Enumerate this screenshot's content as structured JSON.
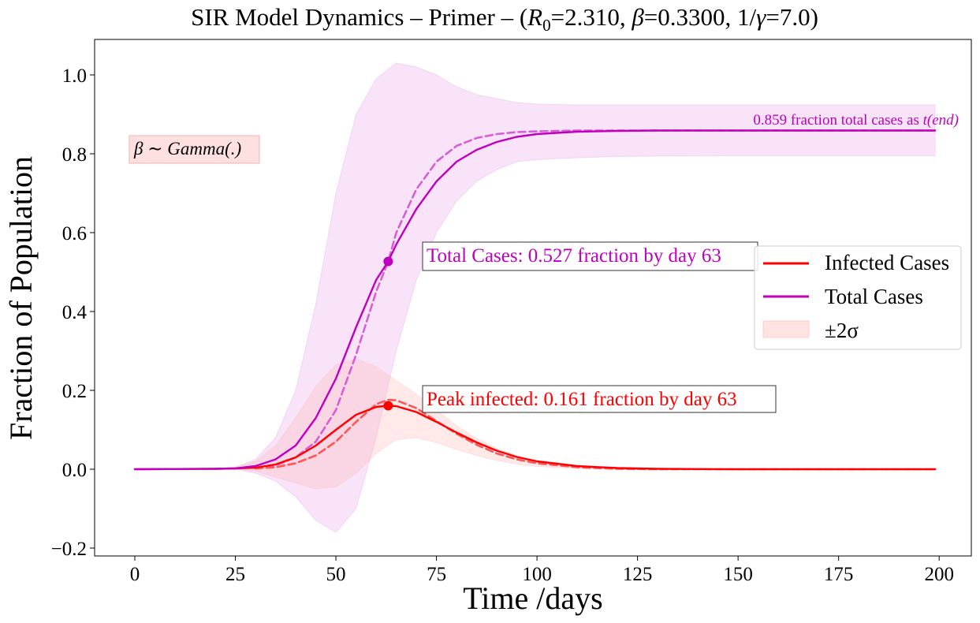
{
  "chart_data": {
    "type": "line",
    "title": "SIR Model Dynamics – Primer – (R0=2.310, β=0.3300, 1/γ=7.0)",
    "title_parts": {
      "prefix": "SIR Model Dynamics – Primer – (",
      "r0_symbol": "R",
      "r0_sub": "0",
      "r0_value": "=2.310, ",
      "beta_symbol": "β",
      "beta_value": "=0.3300, ",
      "gamma_prefix": "1/",
      "gamma_symbol": "γ",
      "gamma_value": "=7.0)"
    },
    "xlabel": "Time /days",
    "ylabel": "Fraction of Population",
    "xlim": [
      -10,
      208
    ],
    "ylim": [
      -0.22,
      1.09
    ],
    "xticks": [
      0,
      25,
      50,
      75,
      100,
      125,
      150,
      175,
      200
    ],
    "yticks": [
      -0.2,
      0.0,
      0.2,
      0.4,
      0.6,
      0.8,
      1.0
    ],
    "xtick_labels": [
      "0",
      "25",
      "50",
      "75",
      "100",
      "125",
      "150",
      "175",
      "200"
    ],
    "ytick_labels": [
      "−0.2",
      "0.0",
      "0.2",
      "0.4",
      "0.6",
      "0.8",
      "1.0"
    ],
    "grid": false,
    "legend_position": "center-right",
    "legend": [
      {
        "label": "Infected Cases",
        "kind": "line",
        "color": "#ff0000"
      },
      {
        "label": "Total Cases",
        "kind": "line",
        "color": "#bf00bf"
      },
      {
        "label": "±2σ",
        "kind": "band",
        "color": "#ffb6b6"
      }
    ],
    "series": [
      {
        "name": "Infected Cases",
        "color": "#ff0000",
        "style": "solid",
        "x": [
          0,
          20,
          25,
          30,
          35,
          40,
          45,
          50,
          55,
          60,
          63,
          65,
          70,
          75,
          80,
          85,
          90,
          95,
          100,
          110,
          120,
          130,
          150,
          175,
          199
        ],
        "y": [
          0.0,
          0.001,
          0.002,
          0.004,
          0.012,
          0.03,
          0.06,
          0.1,
          0.138,
          0.158,
          0.161,
          0.16,
          0.145,
          0.12,
          0.093,
          0.068,
          0.047,
          0.031,
          0.02,
          0.008,
          0.003,
          0.001,
          0.0,
          0.0,
          0.0
        ]
      },
      {
        "name": "Total Cases",
        "color": "#bf00bf",
        "style": "solid",
        "x": [
          0,
          20,
          25,
          30,
          35,
          40,
          45,
          50,
          55,
          60,
          63,
          65,
          70,
          75,
          80,
          85,
          90,
          95,
          100,
          110,
          120,
          130,
          150,
          175,
          199
        ],
        "y": [
          0.0,
          0.001,
          0.002,
          0.008,
          0.025,
          0.06,
          0.13,
          0.23,
          0.36,
          0.48,
          0.527,
          0.57,
          0.66,
          0.73,
          0.78,
          0.81,
          0.83,
          0.843,
          0.85,
          0.856,
          0.858,
          0.859,
          0.859,
          0.859,
          0.859
        ]
      },
      {
        "name": "Infected (dashed)",
        "color": "#ff5555",
        "style": "dashed",
        "x": [
          30,
          35,
          40,
          45,
          50,
          55,
          60,
          63,
          65,
          70,
          75,
          80,
          85,
          90,
          95,
          100,
          110,
          120,
          130,
          150,
          175,
          199
        ],
        "y": [
          0.002,
          0.005,
          0.015,
          0.035,
          0.07,
          0.12,
          0.165,
          0.176,
          0.175,
          0.155,
          0.122,
          0.09,
          0.062,
          0.04,
          0.025,
          0.015,
          0.005,
          0.001,
          0.0,
          0.0,
          0.0,
          0.0
        ]
      },
      {
        "name": "Total (dashed)",
        "color": "#d65fd6",
        "style": "dashed",
        "x": [
          30,
          35,
          40,
          45,
          50,
          55,
          60,
          63,
          65,
          70,
          75,
          80,
          85,
          90,
          95,
          100,
          110,
          120,
          130,
          150,
          175,
          199
        ],
        "y": [
          0.004,
          0.01,
          0.03,
          0.07,
          0.15,
          0.29,
          0.45,
          0.527,
          0.6,
          0.71,
          0.78,
          0.82,
          0.84,
          0.85,
          0.855,
          0.857,
          0.859,
          0.859,
          0.859,
          0.859,
          0.859,
          0.859
        ]
      }
    ],
    "bands": [
      {
        "name": "Total Cases ±2σ",
        "color": "#e7a3e7",
        "x": [
          0,
          20,
          25,
          30,
          35,
          40,
          45,
          50,
          55,
          60,
          65,
          70,
          75,
          80,
          85,
          90,
          95,
          100,
          110,
          120,
          130,
          150,
          175,
          199
        ],
        "lower": [
          0.0,
          0.0,
          0.0,
          -0.01,
          -0.03,
          -0.07,
          -0.13,
          -0.16,
          -0.1,
          0.08,
          0.3,
          0.48,
          0.6,
          0.68,
          0.73,
          0.76,
          0.78,
          0.785,
          0.79,
          0.793,
          0.794,
          0.795,
          0.795,
          0.795
        ],
        "upper": [
          0.0,
          0.002,
          0.005,
          0.025,
          0.08,
          0.2,
          0.42,
          0.7,
          0.9,
          0.99,
          1.03,
          1.02,
          1.0,
          0.97,
          0.95,
          0.94,
          0.93,
          0.926,
          0.924,
          0.924,
          0.924,
          0.924,
          0.924,
          0.924
        ]
      },
      {
        "name": "Infected ±2σ",
        "color": "#ffb6b6",
        "x": [
          0,
          20,
          25,
          30,
          35,
          40,
          45,
          50,
          55,
          60,
          65,
          70,
          75,
          80,
          85,
          90,
          95,
          100,
          110,
          120,
          130,
          150,
          175,
          199
        ],
        "lower": [
          0.0,
          0.0,
          0.0,
          -0.005,
          -0.02,
          -0.035,
          -0.05,
          -0.045,
          -0.01,
          0.04,
          0.075,
          0.08,
          0.068,
          0.05,
          0.035,
          0.022,
          0.013,
          0.007,
          0.002,
          0.0,
          0.0,
          0.0,
          0.0,
          0.0
        ],
        "upper": [
          0.0,
          0.002,
          0.005,
          0.02,
          0.06,
          0.13,
          0.21,
          0.265,
          0.28,
          0.26,
          0.225,
          0.19,
          0.15,
          0.11,
          0.078,
          0.053,
          0.034,
          0.022,
          0.008,
          0.003,
          0.001,
          0.0,
          0.0,
          0.0
        ]
      }
    ],
    "markers": [
      {
        "x": 63,
        "y": 0.527,
        "color": "#bf00bf"
      },
      {
        "x": 63,
        "y": 0.161,
        "color": "#ff0000"
      }
    ],
    "annotations": {
      "total_cases": "Total Cases: 0.527 fraction by day 63",
      "peak_infected": "Peak infected: 0.161 fraction by day 63",
      "final_prefix": "0.859 fraction total cases as ",
      "final_t": "t",
      "final_end": "(end)",
      "beta_dist_symbol": "β",
      "beta_dist_text": " ∼ Gamma(.)"
    }
  }
}
